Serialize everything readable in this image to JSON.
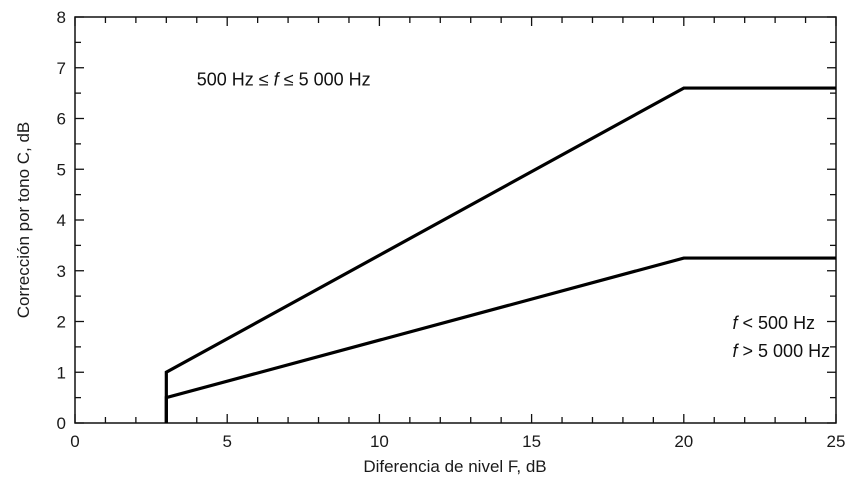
{
  "chart_data": {
    "type": "line",
    "title": "",
    "xlabel": "Diferencia de nivel F, dB",
    "ylabel": "Corrección por tono C, dB",
    "xlim": [
      0,
      25
    ],
    "ylim": [
      0,
      8
    ],
    "xticks": [
      0,
      5,
      10,
      15,
      20,
      25
    ],
    "yticks": [
      0,
      1,
      2,
      3,
      4,
      5,
      6,
      7,
      8
    ],
    "x_minor_step": 1,
    "y_minor_step": 0.5,
    "grid": false,
    "series": [
      {
        "x": [
          3,
          3,
          20,
          25
        ],
        "y": [
          0,
          1,
          6.6,
          6.6
        ],
        "label": "500 Hz ≤ f ≤ 5 000 Hz"
      },
      {
        "x": [
          3,
          3,
          20,
          25
        ],
        "y": [
          0,
          0.5,
          3.25,
          3.25
        ],
        "label_lines": [
          "f < 500 Hz",
          "f > 5 000 Hz"
        ]
      }
    ],
    "annotations": [
      {
        "text": "500 Hz ≤ f ≤ 5 000 Hz",
        "at": [
          4,
          6.65
        ]
      },
      {
        "text": "f < 500 Hz",
        "at": [
          21.6,
          1.85
        ]
      },
      {
        "text": "f > 5 000 Hz",
        "at": [
          21.6,
          1.3
        ]
      }
    ]
  }
}
